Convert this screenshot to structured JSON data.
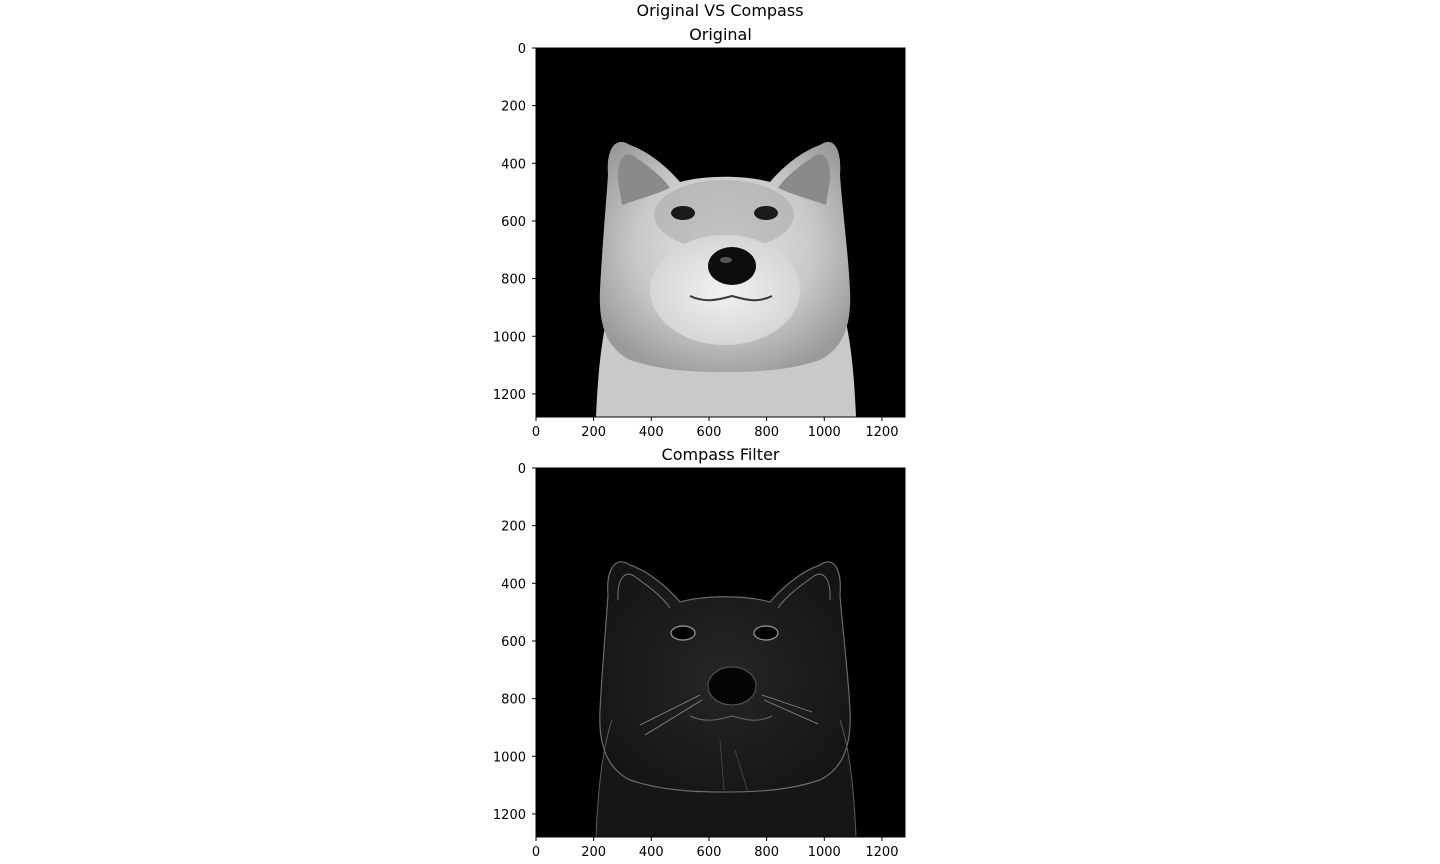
{
  "figure": {
    "suptitle": "Original VS Compass"
  },
  "panels": [
    {
      "title": "Original",
      "image_desc": "grayscale Shiba Inu dog face on black background",
      "x_ticks": [
        "0",
        "200",
        "400",
        "600",
        "800",
        "1000",
        "1200"
      ],
      "y_ticks": [
        "0",
        "200",
        "400",
        "600",
        "800",
        "1000",
        "1200"
      ],
      "xlim": [
        0,
        1280
      ],
      "ylim": [
        1280,
        0
      ]
    },
    {
      "title": "Compass Filter",
      "image_desc": "edge-detected Shiba Inu face, faint white edges on black",
      "x_ticks": [
        "0",
        "200",
        "400",
        "600",
        "800",
        "1000",
        "1200"
      ],
      "y_ticks": [
        "0",
        "200",
        "400",
        "600",
        "800",
        "1000",
        "1200"
      ],
      "xlim": [
        0,
        1280
      ],
      "ylim": [
        1280,
        0
      ]
    }
  ]
}
